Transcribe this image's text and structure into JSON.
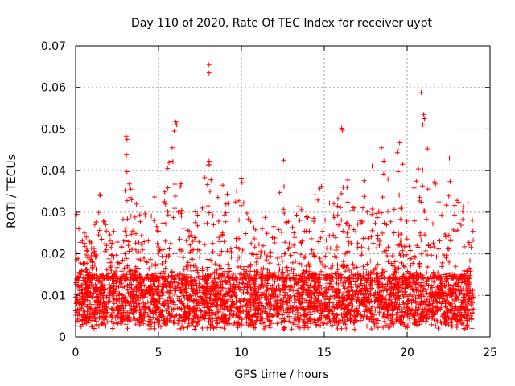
{
  "chart_data": {
    "type": "scatter",
    "title": "Day 110 of 2020, Rate Of TEC Index for receiver uypt",
    "xlabel": "GPS time / hours",
    "ylabel": "ROTI / TECUs",
    "xlim": [
      0,
      25
    ],
    "ylim": [
      0,
      0.07
    ],
    "grid": true,
    "marker": "+",
    "series_color": "#ff0000",
    "x_ticks": [
      {
        "value": 0,
        "label": "0"
      },
      {
        "value": 5,
        "label": "5"
      },
      {
        "value": 10,
        "label": "10"
      },
      {
        "value": 15,
        "label": "15"
      },
      {
        "value": 20,
        "label": "20"
      },
      {
        "value": 25,
        "label": "25"
      }
    ],
    "y_ticks": [
      {
        "value": 0,
        "label": "0"
      },
      {
        "value": 0.01,
        "label": "0.01"
      },
      {
        "value": 0.02,
        "label": "0.02"
      },
      {
        "value": 0.03,
        "label": "0.03"
      },
      {
        "value": 0.04,
        "label": "0.04"
      },
      {
        "value": 0.05,
        "label": "0.05"
      },
      {
        "value": 0.06,
        "label": "0.06"
      },
      {
        "value": 0.07,
        "label": "0.07"
      }
    ],
    "upper_envelope": [
      [
        0.0,
        0.031
      ],
      [
        0.5,
        0.026
      ],
      [
        1.0,
        0.024
      ],
      [
        1.5,
        0.034
      ],
      [
        2.0,
        0.026
      ],
      [
        2.5,
        0.025
      ],
      [
        3.0,
        0.048
      ],
      [
        3.5,
        0.031
      ],
      [
        4.0,
        0.034
      ],
      [
        4.5,
        0.038
      ],
      [
        5.0,
        0.035
      ],
      [
        5.5,
        0.041
      ],
      [
        6.0,
        0.052
      ],
      [
        6.5,
        0.034
      ],
      [
        7.0,
        0.03
      ],
      [
        7.5,
        0.034
      ],
      [
        8.0,
        0.044
      ],
      [
        8.5,
        0.033
      ],
      [
        9.0,
        0.041
      ],
      [
        9.5,
        0.033
      ],
      [
        10.0,
        0.038
      ],
      [
        10.5,
        0.03
      ],
      [
        11.0,
        0.027
      ],
      [
        11.5,
        0.033
      ],
      [
        12.0,
        0.036
      ],
      [
        12.5,
        0.042
      ],
      [
        13.0,
        0.035
      ],
      [
        13.5,
        0.039
      ],
      [
        14.0,
        0.034
      ],
      [
        14.5,
        0.037
      ],
      [
        15.0,
        0.038
      ],
      [
        15.5,
        0.031
      ],
      [
        16.0,
        0.05
      ],
      [
        16.5,
        0.036
      ],
      [
        17.0,
        0.034
      ],
      [
        17.5,
        0.04
      ],
      [
        18.0,
        0.043
      ],
      [
        18.5,
        0.045
      ],
      [
        19.0,
        0.039
      ],
      [
        19.5,
        0.047
      ],
      [
        20.0,
        0.04
      ],
      [
        20.5,
        0.036
      ],
      [
        21.0,
        0.053
      ],
      [
        21.5,
        0.04
      ],
      [
        22.0,
        0.036
      ],
      [
        22.5,
        0.043
      ],
      [
        23.0,
        0.033
      ],
      [
        23.5,
        0.036
      ],
      [
        24.0,
        0.03
      ]
    ],
    "outliers": [
      {
        "x": 8.05,
        "y": 0.0655
      },
      {
        "x": 8.05,
        "y": 0.0635
      },
      {
        "x": 20.85,
        "y": 0.0588
      },
      {
        "x": 6.05,
        "y": 0.0517
      },
      {
        "x": 6.1,
        "y": 0.051
      },
      {
        "x": 5.95,
        "y": 0.0495
      },
      {
        "x": 16.05,
        "y": 0.0502
      },
      {
        "x": 16.1,
        "y": 0.0497
      },
      {
        "x": 21.0,
        "y": 0.0535
      },
      {
        "x": 21.05,
        "y": 0.0525
      },
      {
        "x": 20.95,
        "y": 0.051
      },
      {
        "x": 3.05,
        "y": 0.0483
      },
      {
        "x": 3.1,
        "y": 0.0475
      },
      {
        "x": 19.55,
        "y": 0.0467
      },
      {
        "x": 19.45,
        "y": 0.045
      },
      {
        "x": 18.45,
        "y": 0.0455
      },
      {
        "x": 1.45,
        "y": 0.0342
      },
      {
        "x": 1.5,
        "y": 0.034
      },
      {
        "x": 10.0,
        "y": 0.0382
      },
      {
        "x": 12.55,
        "y": 0.0425
      },
      {
        "x": 22.55,
        "y": 0.043
      },
      {
        "x": 5.55,
        "y": 0.0405
      }
    ],
    "baseline_range": [
      0.003,
      0.014
    ],
    "points_count": 9000
  }
}
